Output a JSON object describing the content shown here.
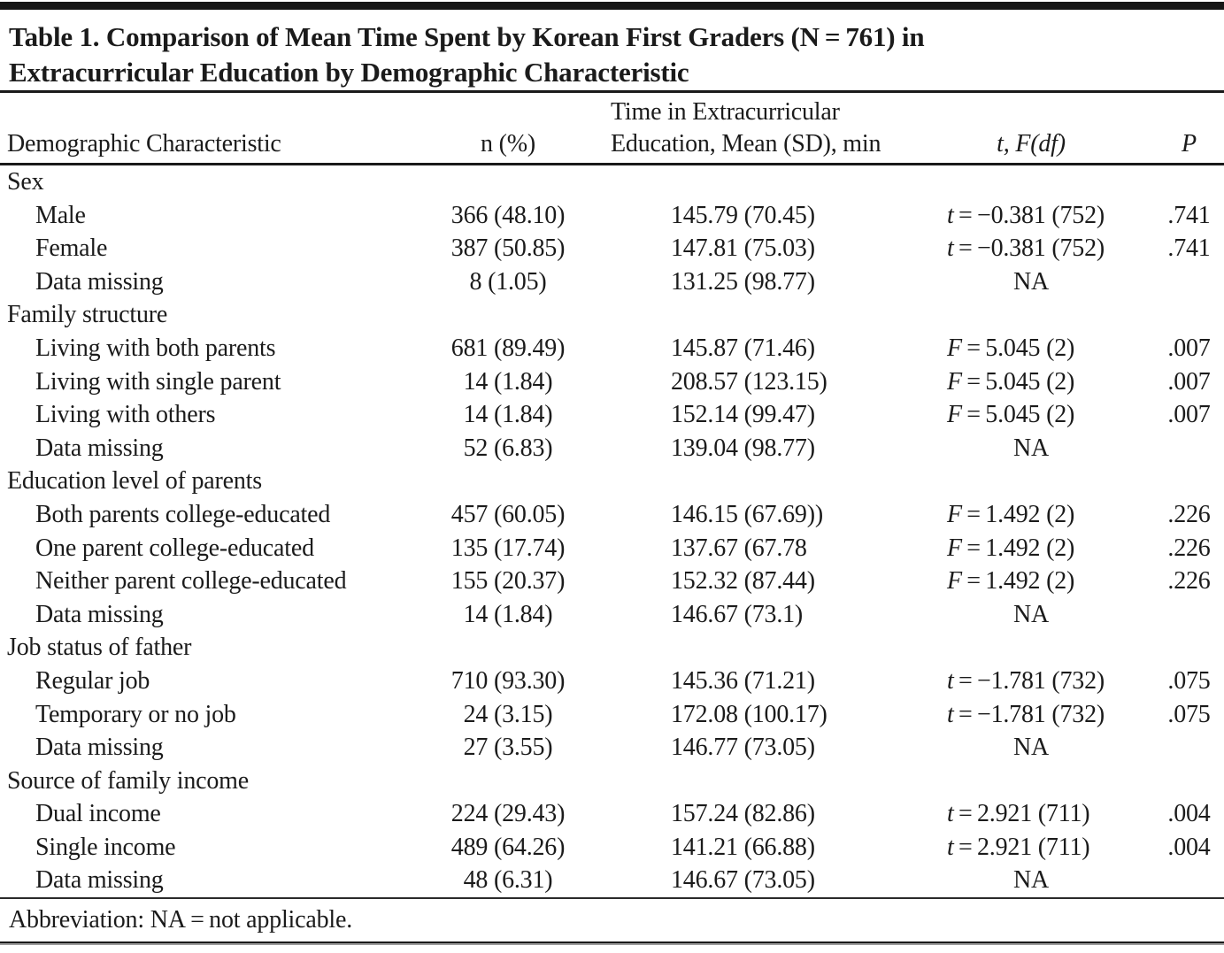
{
  "title": {
    "line1": "Table 1. Comparison of Mean Time Spent by Korean First Graders (N = 761) in",
    "line2": "Extracurricular Education by Demographic Characteristic"
  },
  "headers": {
    "col1": "Demographic Characteristic",
    "col2": "n (%)",
    "col3_line1": "Time in Extracurricular",
    "col3_line2": "Education, Mean (SD), min",
    "col4": "t, F(df)",
    "col5": "P"
  },
  "rows": [
    {
      "label": "Sex"
    },
    {
      "label": "Male",
      "n": "366 (48.10)",
      "time": "145.79 (70.45)",
      "stat": "t = −0.381 (752)",
      "p": ".741"
    },
    {
      "label": "Female",
      "n": "387 (50.85)",
      "time": "147.81 (75.03)",
      "stat": "t = −0.381 (752)",
      "p": ".741"
    },
    {
      "label": "Data missing",
      "n": "8 (1.05)",
      "time": "131.25 (98.77)",
      "stat": "NA",
      "p": ""
    },
    {
      "label": "Family structure"
    },
    {
      "label": "Living with both parents",
      "n": "681 (89.49)",
      "time": "145.87 (71.46)",
      "stat": "F = 5.045 (2)",
      "p": ".007"
    },
    {
      "label": "Living with single parent",
      "n": "14 (1.84)",
      "time": "208.57 (123.15)",
      "stat": "F = 5.045 (2)",
      "p": ".007"
    },
    {
      "label": "Living with others",
      "n": "14 (1.84)",
      "time": "152.14 (99.47)",
      "stat": "F = 5.045 (2)",
      "p": ".007"
    },
    {
      "label": "Data missing",
      "n": "52 (6.83)",
      "time": "139.04 (98.77)",
      "stat": "NA",
      "p": ""
    },
    {
      "label": "Education level of parents"
    },
    {
      "label": "Both parents college-educated",
      "n": "457 (60.05)",
      "time": "146.15 (67.69))",
      "stat": "F = 1.492 (2)",
      "p": ".226"
    },
    {
      "label": "One parent college-educated",
      "n": "135 (17.74)",
      "time": "137.67 (67.78",
      "stat": "F = 1.492 (2)",
      "p": ".226"
    },
    {
      "label": "Neither parent college-educated",
      "n": "155 (20.37)",
      "time": "152.32 (87.44)",
      "stat": "F = 1.492 (2)",
      "p": ".226"
    },
    {
      "label": "Data missing",
      "n": "14 (1.84)",
      "time": "146.67 (73.1)",
      "stat": "NA",
      "p": ""
    },
    {
      "label": "Job status of father"
    },
    {
      "label": "Regular job",
      "n": "710 (93.30)",
      "time": "145.36 (71.21)",
      "stat": "t = −1.781 (732)",
      "p": ".075"
    },
    {
      "label": "Temporary or no job",
      "n": "24 (3.15)",
      "time": "172.08 (100.17)",
      "stat": "t = −1.781 (732)",
      "p": ".075"
    },
    {
      "label": "Data missing",
      "n": "27 (3.55)",
      "time": "146.77 (73.05)",
      "stat": "NA",
      "p": ""
    },
    {
      "label": "Source of family income"
    },
    {
      "label": "Dual income",
      "n": "224 (29.43)",
      "time": "157.24 (82.86)",
      "stat": "t = 2.921 (711)",
      "p": ".004"
    },
    {
      "label": "Single income",
      "n": "489 (64.26)",
      "time": "141.21 (66.88)",
      "stat": "t = 2.921 (711)",
      "p": ".004"
    },
    {
      "label": "Data missing",
      "n": "48 (6.31)",
      "time": "146.67 (73.05)",
      "stat": "NA",
      "p": ""
    }
  ],
  "footnote": "Abbreviation: NA = not applicable."
}
